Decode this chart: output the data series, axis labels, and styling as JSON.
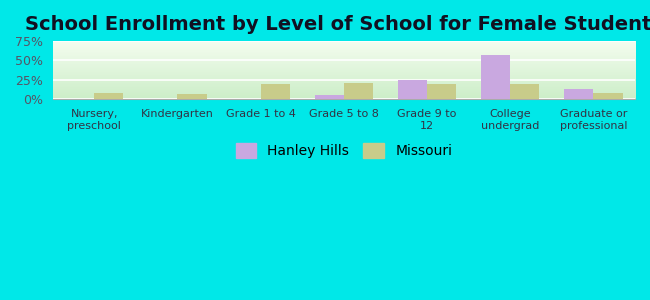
{
  "title": "School Enrollment by Level of School for Female Students",
  "categories": [
    "Nursery,\npreschool",
    "Kindergarten",
    "Grade 1 to 4",
    "Grade 5 to 8",
    "Grade 9 to\n12",
    "College\nundergrad",
    "Graduate or\nprofessional"
  ],
  "hanley_hills": [
    0,
    0,
    0,
    6,
    25,
    57,
    13
  ],
  "missouri": [
    8,
    7,
    20,
    21,
    20,
    20,
    8
  ],
  "hanley_hills_color": "#c9a8e0",
  "missouri_color": "#c8cc8a",
  "background_color": "#00e8e8",
  "plot_bg_color": "#e8f5e0",
  "ylim": [
    0,
    75
  ],
  "yticks": [
    0,
    25,
    50,
    75
  ],
  "ytick_labels": [
    "0%",
    "25%",
    "50%",
    "75%"
  ],
  "legend_hanley": "Hanley Hills",
  "legend_missouri": "Missouri",
  "title_fontsize": 14,
  "bar_width": 0.35
}
